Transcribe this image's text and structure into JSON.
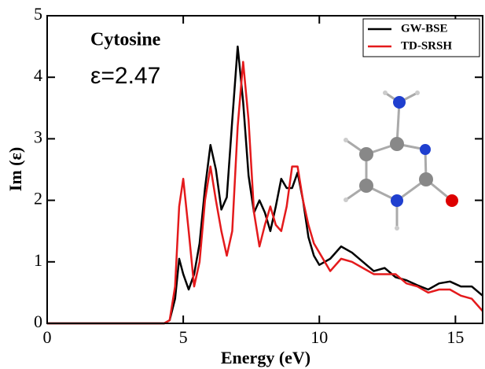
{
  "chart_data": {
    "type": "line",
    "annotations": [
      "Cytosine",
      "ε=2.47"
    ],
    "x_label": "Energy (eV)",
    "y_label": "Im (ε)",
    "x": [
      0,
      4.3,
      4.5,
      4.7,
      4.85,
      5.0,
      5.2,
      5.4,
      5.6,
      5.8,
      6.0,
      6.2,
      6.4,
      6.6,
      6.8,
      7.0,
      7.2,
      7.4,
      7.6,
      7.8,
      8.0,
      8.2,
      8.4,
      8.6,
      8.8,
      9.0,
      9.2,
      9.4,
      9.6,
      9.8,
      10.0,
      10.4,
      10.8,
      11.2,
      11.6,
      12.0,
      12.4,
      12.8,
      13.2,
      13.6,
      14.0,
      14.4,
      14.8,
      15.2,
      15.6,
      16.0
    ],
    "series": [
      {
        "name": "GW-BSE",
        "color": "#000000",
        "values": [
          0,
          0,
          0.05,
          0.4,
          1.05,
          0.8,
          0.55,
          0.8,
          1.3,
          2.2,
          2.9,
          2.5,
          1.85,
          2.05,
          3.3,
          4.5,
          3.6,
          2.4,
          1.8,
          2.0,
          1.8,
          1.5,
          1.9,
          2.35,
          2.2,
          2.2,
          2.45,
          2.0,
          1.4,
          1.1,
          0.95,
          1.05,
          1.25,
          1.15,
          1.0,
          0.85,
          0.9,
          0.75,
          0.7,
          0.62,
          0.55,
          0.65,
          0.68,
          0.6,
          0.6,
          0.45
        ]
      },
      {
        "name": "TD-SRSH",
        "color": "#e41a1c",
        "values": [
          0,
          0,
          0.05,
          0.6,
          1.9,
          2.35,
          1.5,
          0.6,
          1.0,
          2.0,
          2.55,
          2.0,
          1.5,
          1.1,
          1.5,
          3.2,
          4.25,
          3.3,
          1.8,
          1.25,
          1.6,
          1.9,
          1.6,
          1.5,
          1.9,
          2.55,
          2.55,
          2.0,
          1.6,
          1.3,
          1.15,
          0.85,
          1.05,
          1.0,
          0.9,
          0.8,
          0.8,
          0.8,
          0.65,
          0.6,
          0.5,
          0.55,
          0.55,
          0.45,
          0.4,
          0.2
        ]
      }
    ],
    "xlim": [
      0,
      16
    ],
    "xticks": [
      0,
      5,
      10,
      15
    ],
    "ylim": [
      0,
      5
    ],
    "yticks": [
      0,
      1,
      2,
      3,
      4,
      5
    ],
    "legend": "upper right"
  }
}
